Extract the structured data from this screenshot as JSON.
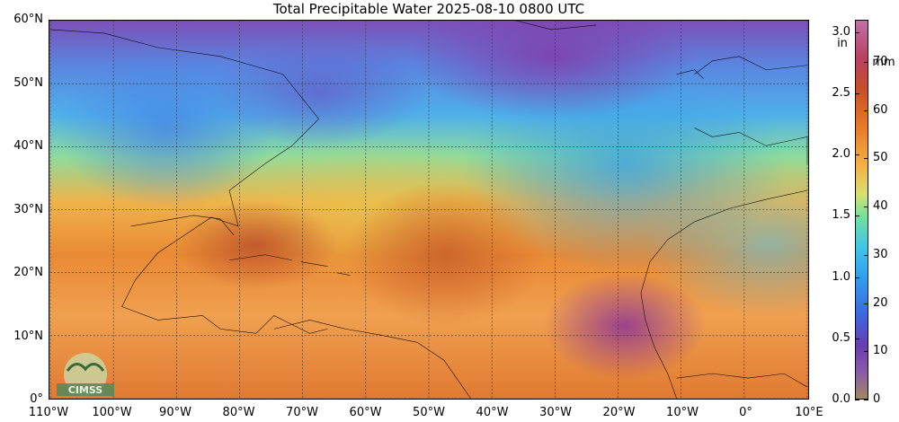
{
  "title": "Total Precipitable Water  2025-08-10 0800 UTC",
  "map": {
    "lat_labels": [
      "60°N",
      "50°N",
      "40°N",
      "30°N",
      "20°N",
      "10°N",
      "0°"
    ],
    "lon_labels": [
      "110°W",
      "100°W",
      "90°W",
      "80°W",
      "70°W",
      "60°W",
      "50°W",
      "40°W",
      "30°W",
      "20°W",
      "10°W",
      "0°",
      "10°E"
    ],
    "lat_range": [
      0,
      60
    ],
    "lon_range": [
      -110,
      10
    ],
    "grid": true,
    "logo_text": "CIMSS"
  },
  "colorbar": {
    "inch_unit": "in",
    "mm_unit": "mm",
    "inch_labels": [
      "3.0",
      "2.5",
      "2.0",
      "1.5",
      "1.0",
      "0.5",
      "0.0"
    ],
    "inch_values": [
      3.0,
      2.5,
      2.0,
      1.5,
      1.0,
      0.5,
      0.0
    ],
    "mm_labels": [
      "70",
      "60",
      "50",
      "40",
      "30",
      "20",
      "10",
      "0"
    ],
    "mm_values": [
      70,
      60,
      50,
      40,
      30,
      20,
      10,
      0
    ],
    "max_inches": 3.1
  }
}
